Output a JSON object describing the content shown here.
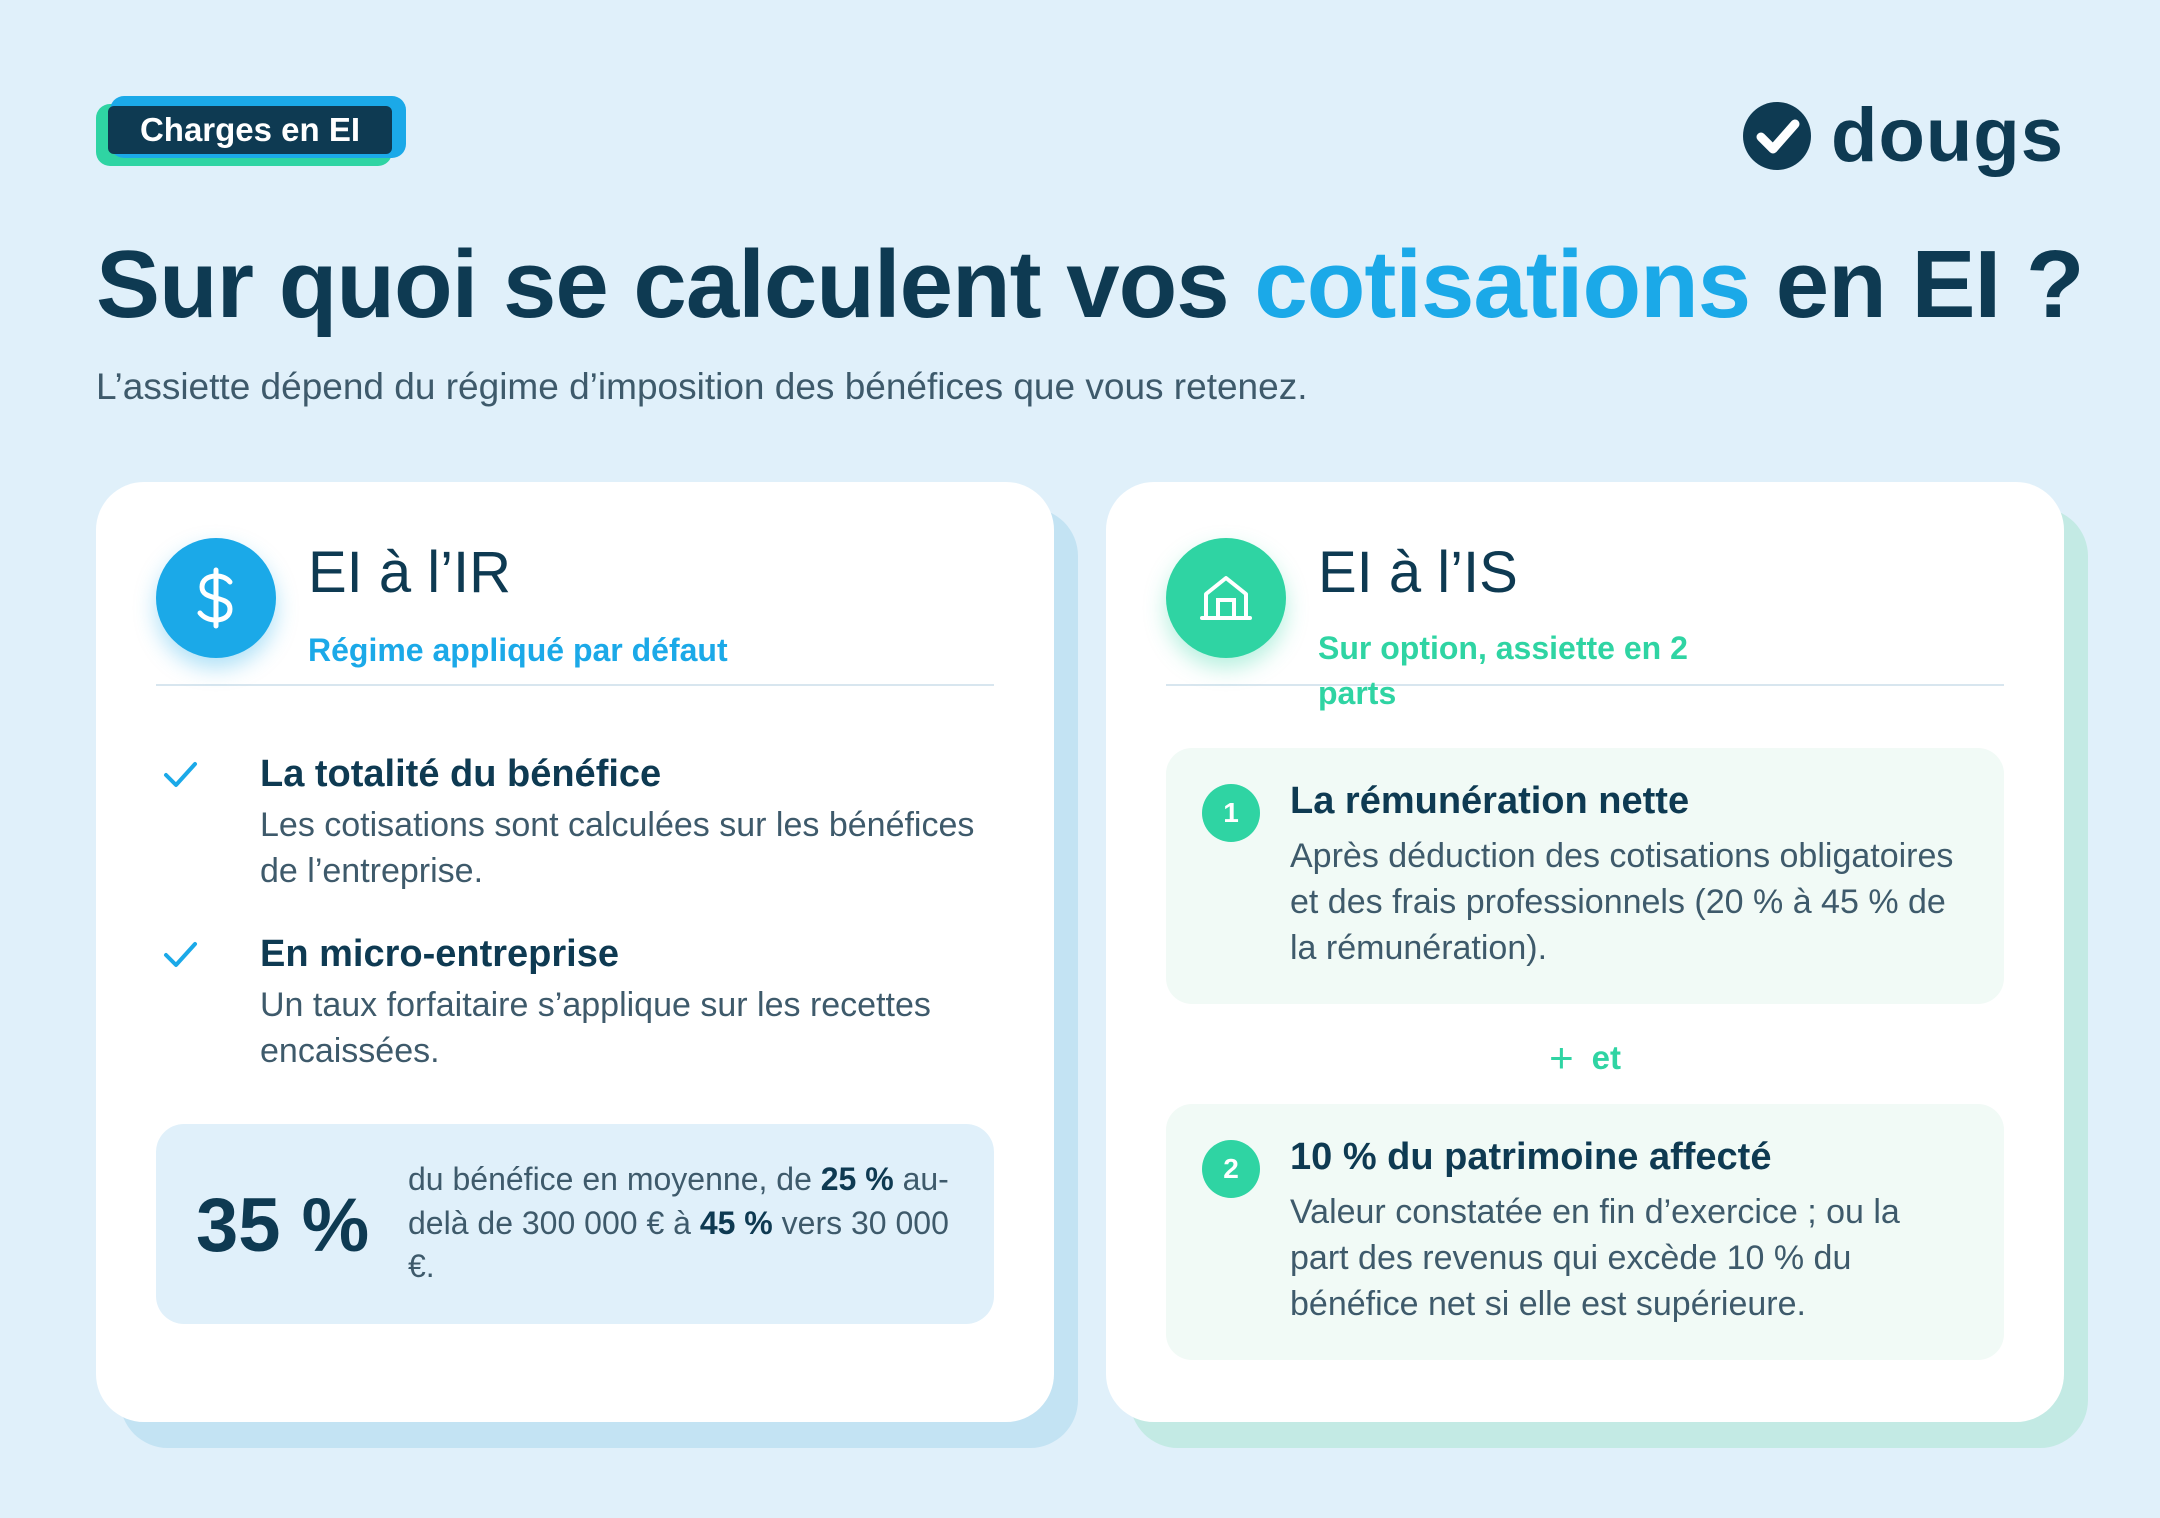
{
  "tag": {
    "label": "Charges en EI"
  },
  "logo": {
    "text": "dougs",
    "icon": "check-circle-icon"
  },
  "header": {
    "title_before": "Sur quoi se calculent vos ",
    "title_highlight": "cotisations",
    "title_after": " en EI ?",
    "subtitle": "L’assiette dépend du régime d’imposition des bénéfices que vous retenez."
  },
  "left_card": {
    "icon": "dollar-icon",
    "title": "EI à l’IR",
    "subtitle": "Régime appliqué par défaut",
    "items": [
      {
        "title": "La totalité du bénéfice",
        "text": "Les cotisations sont calculées sur les bénéfices de l’entreprise."
      },
      {
        "title": "En micro-entreprise",
        "text": "Un taux forfaitaire s’applique sur les recettes encaissées."
      }
    ],
    "stat": {
      "value": "35 %",
      "text_1": "du bénéfice en moyenne, de ",
      "bold_1": "25 %",
      "text_2": " au-delà de 300 000 € à ",
      "bold_2": "45 %",
      "text_3": " vers 30 000 €."
    }
  },
  "right_card": {
    "icon": "building-icon",
    "title": "EI à l’IS",
    "subtitle": "Sur option, assiette en 2 parts",
    "parts": [
      {
        "number": "1",
        "title": "La rémunération nette",
        "text": "Après déduction des cotisations obligatoires et des frais professionnels (20 % à 45 % de la rémunération)."
      },
      {
        "number": "2",
        "title": "10 % du patrimoine affecté",
        "text": "Valeur constatée en fin d’exercice ; ou la part des revenus qui excède 10 % du bénéfice net si elle est supérieure."
      }
    ],
    "connector": {
      "symbol": "+",
      "label": "et"
    }
  },
  "colors": {
    "navy": "#0e3a52",
    "blue": "#1ba9e8",
    "green": "#2fd4a3",
    "background": "#e0f0fa"
  }
}
